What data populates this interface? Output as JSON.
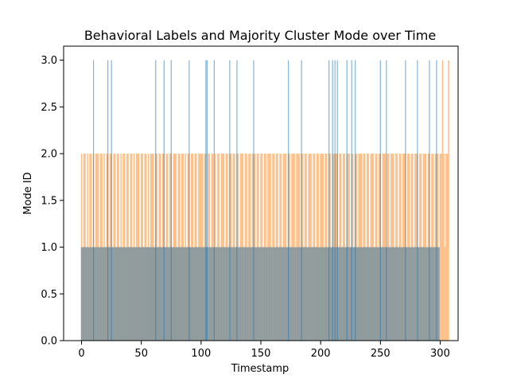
{
  "chart_data": {
    "type": "bar",
    "title": "Behavioral Labels and Majority Cluster Mode over Time",
    "xlabel": "Timestamp",
    "ylabel": "Mode ID",
    "xlim": [
      -15,
      315
    ],
    "ylim": [
      0,
      3.15
    ],
    "xticks": [
      0,
      50,
      100,
      150,
      200,
      250,
      300
    ],
    "yticks": [
      "0.0",
      "0.5",
      "1.0",
      "1.5",
      "2.0",
      "2.5",
      "3.0"
    ],
    "colors": {
      "series1": "#1f77b4",
      "series2": "#ff7f0e",
      "overlap": "#c49a72"
    },
    "grid": false,
    "legend": "none",
    "series": [
      {
        "color": "#1f77b4",
        "x": [
          10,
          22,
          25,
          62,
          69,
          75,
          90,
          104,
          105,
          111,
          124,
          130,
          144,
          173,
          184,
          207,
          210,
          212,
          214,
          222,
          226,
          229,
          250,
          255,
          271,
          281,
          291,
          297
        ],
        "values": [
          3,
          3,
          3,
          3,
          3,
          3,
          3,
          3,
          3,
          3,
          3,
          3,
          3,
          3,
          3,
          3,
          3,
          3,
          3,
          3,
          3,
          3,
          3,
          3,
          3,
          3,
          3,
          3
        ]
      },
      {
        "color": "#ff7f0e",
        "x_range": [
          0,
          299
        ],
        "values_pattern": "mode 1 baseline with frequent mode 2 and occasional mode 3 bars",
        "values": [
          2,
          1,
          2,
          2,
          1,
          2,
          1,
          2,
          2,
          1,
          2,
          1,
          2,
          2,
          2,
          1,
          2,
          2,
          1,
          2,
          1,
          2,
          2,
          1,
          2,
          2,
          1,
          2,
          2,
          1,
          2,
          2,
          1,
          2,
          1,
          2,
          2,
          1,
          2,
          2,
          1,
          2,
          2,
          1,
          2,
          1,
          2,
          2,
          2,
          1,
          2,
          2,
          1,
          2,
          2,
          1,
          2,
          1,
          2,
          2,
          2,
          1,
          2,
          2,
          1,
          2,
          2,
          1,
          2,
          2,
          1,
          2,
          2,
          1,
          2,
          2,
          1,
          2,
          2,
          2,
          1,
          2,
          2,
          1,
          2,
          2,
          1,
          2,
          1,
          2,
          2,
          1,
          2,
          2,
          1,
          2,
          2,
          1,
          2,
          2,
          2,
          2,
          1,
          2,
          2,
          1,
          2,
          2,
          1,
          2,
          2,
          1,
          2,
          1,
          2,
          2,
          1,
          2,
          2,
          2,
          1,
          2,
          2,
          1,
          2,
          2,
          1,
          2,
          2,
          1,
          2,
          2,
          1,
          2,
          2,
          2,
          1,
          2,
          2,
          1,
          2,
          2,
          1,
          2,
          2,
          2,
          1,
          2,
          2,
          1,
          2,
          2,
          1,
          2,
          2,
          1,
          2,
          2,
          2,
          1,
          2,
          2,
          1,
          2,
          2,
          1,
          2,
          2,
          1,
          2,
          2,
          2,
          1,
          2,
          2,
          1,
          2,
          2,
          2,
          1,
          2,
          2,
          2,
          1,
          2,
          2,
          1,
          2,
          2,
          1,
          2,
          2,
          2,
          1,
          2,
          2,
          1,
          2,
          2,
          1,
          2,
          2,
          2,
          1,
          2,
          2,
          1,
          2,
          2,
          1,
          2,
          2,
          2,
          2,
          2,
          1,
          2,
          2,
          1,
          2,
          2,
          1,
          2,
          2,
          2,
          1,
          2,
          2,
          1,
          2,
          2,
          1,
          2,
          2,
          2,
          1,
          2,
          2,
          1,
          2,
          2,
          1,
          2,
          2,
          2,
          1,
          2,
          2,
          1,
          2,
          2,
          1,
          2,
          2,
          2,
          1,
          2,
          2,
          1,
          2,
          2,
          2,
          1,
          2,
          2,
          1,
          2,
          2,
          1,
          2,
          2,
          2,
          1,
          2,
          2,
          1,
          2,
          2,
          1,
          2,
          2,
          2,
          1,
          2,
          2,
          1,
          2,
          2,
          2,
          1,
          2,
          2,
          1,
          2,
          2,
          1,
          2,
          2,
          2,
          1,
          2,
          2,
          3,
          2,
          1,
          2,
          2,
          3
        ]
      }
    ]
  }
}
